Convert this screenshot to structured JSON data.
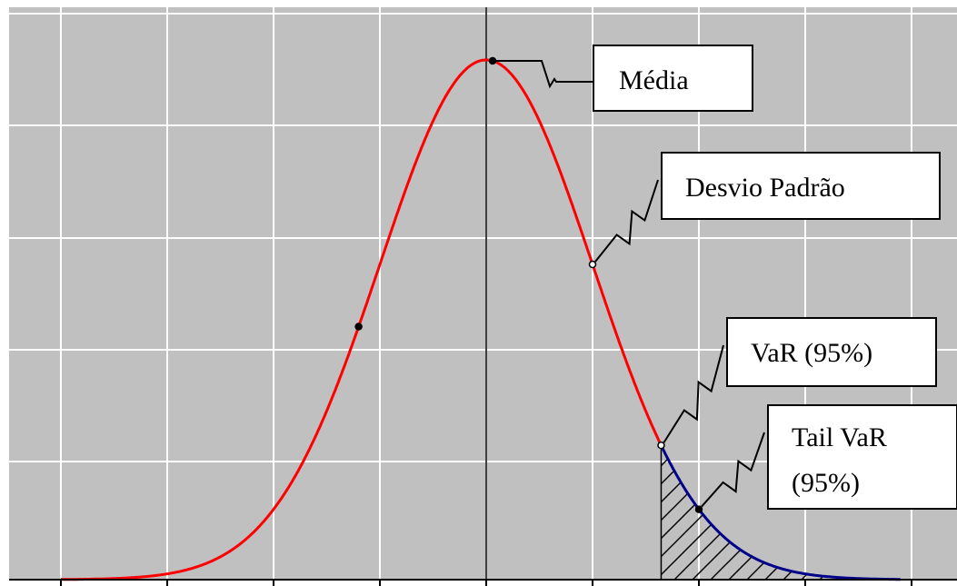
{
  "chart_data": {
    "type": "line",
    "title": "",
    "xlabel": "",
    "ylabel": "",
    "xlim": [
      -4.0,
      4.5
    ],
    "ylim": [
      0,
      0.43
    ],
    "grid": true,
    "grid_color": "#ffffff",
    "background": "#c0c0c0",
    "distribution": "normal",
    "mean": 0,
    "std": 1,
    "series": [
      {
        "color": "#ff0000",
        "from": -4.0,
        "to": 1.645
      },
      {
        "color": "#00008b",
        "from": 1.645,
        "to": 3.9
      }
    ],
    "markers": [
      {
        "x": 0.06
      },
      {
        "x": 1.0
      },
      {
        "x": 1.645
      },
      {
        "x": 2.0
      },
      {
        "x": -1.2
      }
    ],
    "shaded_region": {
      "from": 1.645,
      "to": 3.9,
      "pattern": "hatch"
    },
    "annotations": [
      {
        "text": "Média",
        "target_x": 0.06
      },
      {
        "text": "Desvio Padrão",
        "target_x": 1.0
      },
      {
        "text": "VaR (95%)",
        "target_x": 1.645
      },
      {
        "text": "Tail VaR",
        "text2": "(95%)",
        "target_x": 2.0
      }
    ]
  }
}
